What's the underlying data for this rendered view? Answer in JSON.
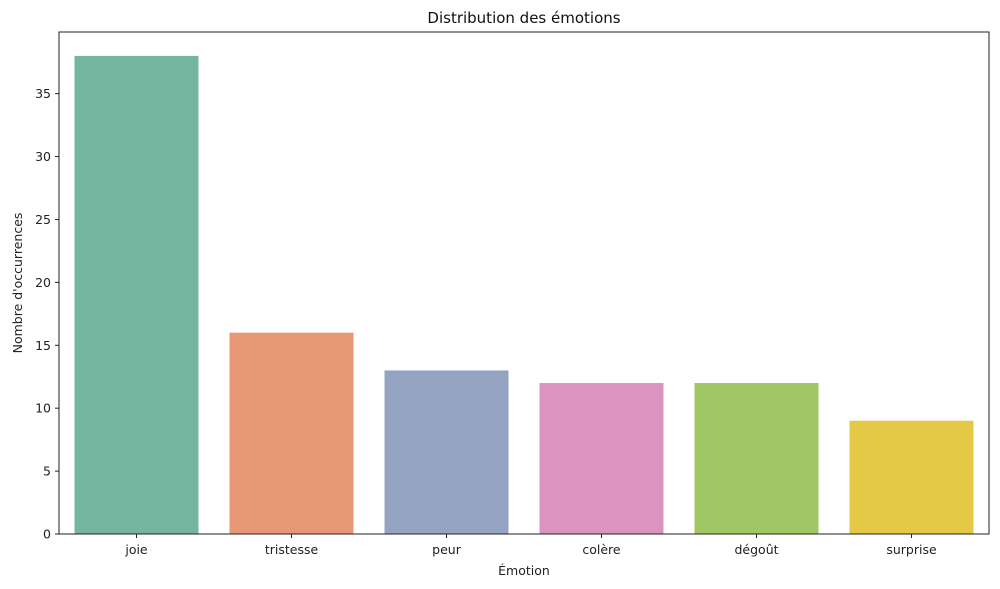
{
  "chart_data": {
    "type": "bar",
    "title": "Distribution des émotions",
    "xlabel": "Émotion",
    "ylabel": "Nombre d'occurrences",
    "categories": [
      "joie",
      "tristesse",
      "peur",
      "colère",
      "dégoût",
      "surprise"
    ],
    "values": [
      38,
      16,
      13,
      12,
      12,
      9
    ],
    "colors": [
      "#73b59f",
      "#e89775",
      "#95a3c3",
      "#db94bf",
      "#a1c765",
      "#e4c947"
    ],
    "ylim": [
      0,
      39.9
    ],
    "yticks": [
      0,
      5,
      10,
      15,
      20,
      25,
      30,
      35
    ],
    "grid": false,
    "legend": "none"
  }
}
